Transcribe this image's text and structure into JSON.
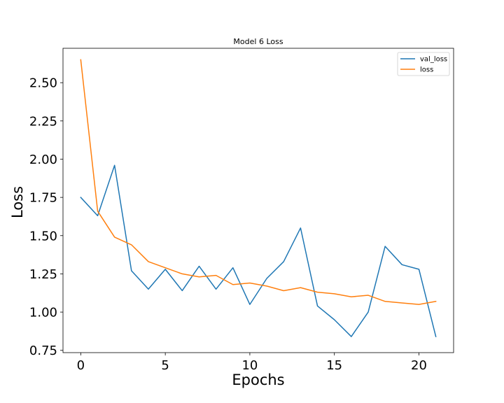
{
  "chart_data": {
    "type": "line",
    "title": "Model 6 Loss",
    "xlabel": "Epochs",
    "ylabel": "Loss",
    "xlim": [
      -1.05,
      22.05
    ],
    "ylim": [
      0.735,
      2.725
    ],
    "xticks": [
      0,
      5,
      10,
      15,
      20
    ],
    "xtick_labels": [
      "0",
      "5",
      "10",
      "15",
      "20"
    ],
    "yticks": [
      0.75,
      1.0,
      1.25,
      1.5,
      1.75,
      2.0,
      2.25,
      2.5
    ],
    "ytick_labels": [
      "0.75",
      "1.00",
      "1.25",
      "1.50",
      "1.75",
      "2.00",
      "2.25",
      "2.50"
    ],
    "grid": false,
    "legend_position": "top-right",
    "x": [
      0,
      1,
      2,
      3,
      4,
      5,
      6,
      7,
      8,
      9,
      10,
      11,
      12,
      13,
      14,
      15,
      16,
      17,
      18,
      19,
      20,
      21
    ],
    "series": [
      {
        "name": "val_loss",
        "color": "#1f77b4",
        "values": [
          1.75,
          1.63,
          1.96,
          1.27,
          1.15,
          1.28,
          1.14,
          1.3,
          1.15,
          1.29,
          1.05,
          1.22,
          1.33,
          1.55,
          1.04,
          0.95,
          0.84,
          1.0,
          1.43,
          1.31,
          1.28,
          0.84
        ]
      },
      {
        "name": "loss",
        "color": "#ff7f0e",
        "values": [
          2.65,
          1.66,
          1.49,
          1.44,
          1.33,
          1.29,
          1.25,
          1.23,
          1.24,
          1.18,
          1.19,
          1.17,
          1.14,
          1.16,
          1.13,
          1.12,
          1.1,
          1.11,
          1.07,
          1.06,
          1.05,
          1.07
        ]
      }
    ]
  }
}
